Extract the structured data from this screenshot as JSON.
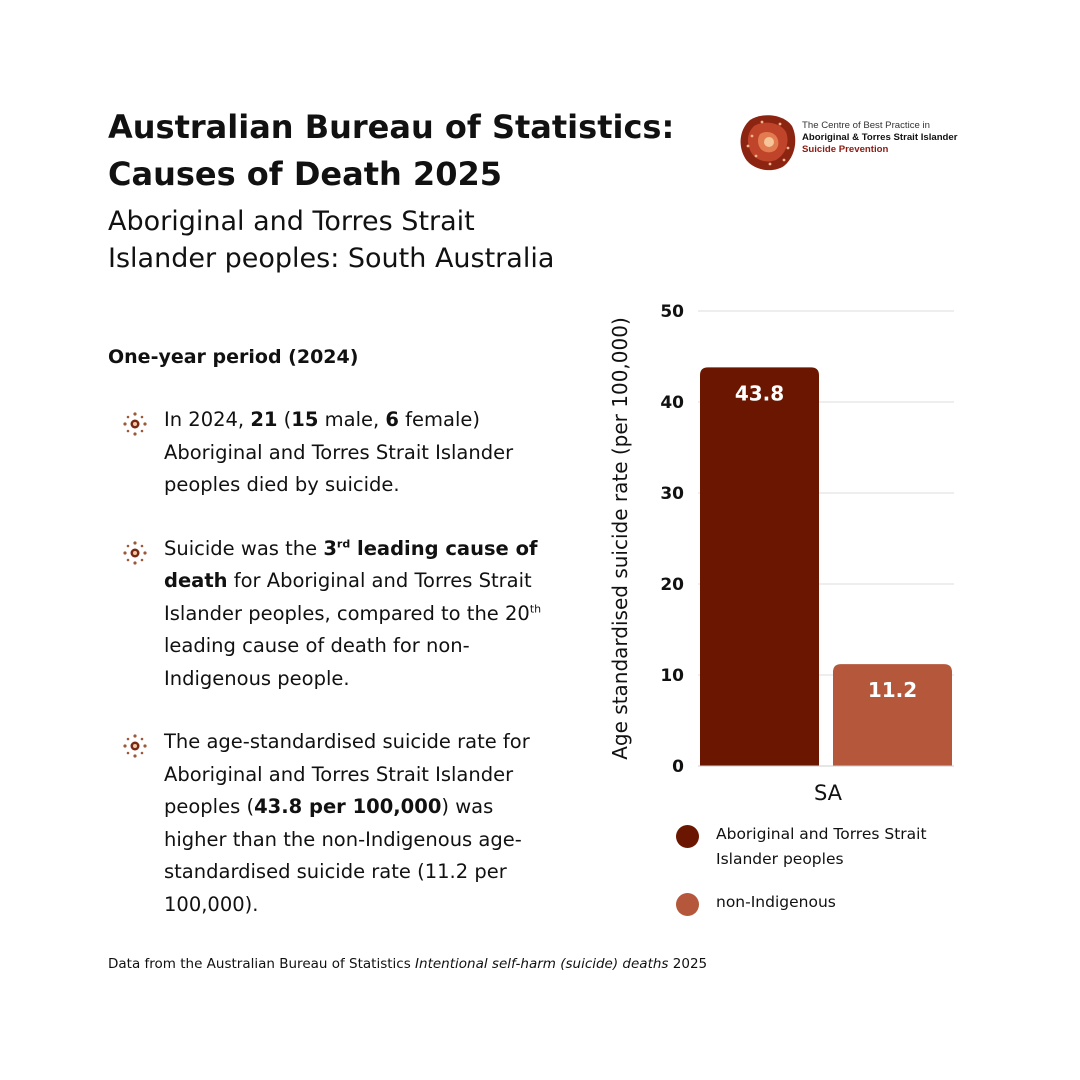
{
  "header": {
    "title_line1": "Australian Bureau of Statistics:",
    "title_line2": "Causes of Death 2025",
    "subtitle_line1": "Aboriginal and Torres Strait",
    "subtitle_line2": "Islander peoples: South Australia"
  },
  "logo": {
    "line1": "The Centre of Best Practice in",
    "line2": "Aboriginal & Torres Strait Islander",
    "line3": "Suicide Prevention",
    "icon": "dot-painting-stone-icon"
  },
  "section": {
    "period_heading": "One-year period (2024)"
  },
  "bullets": {
    "b1": {
      "t1": "In 2024, ",
      "n1": "21",
      "t2": " (",
      "n2": "15",
      "t3": " male, ",
      "n3": "6",
      "t4": " female) Aboriginal and Torres Strait Islander peoples died by suicide."
    },
    "b2": {
      "t1": "Suicide was the ",
      "rank": "3",
      "rank_sup": "rd",
      "bold1": " leading cause of death",
      "t2": " for Aboriginal and Torres Strait Islander peoples, compared to the ",
      "rank2": "20",
      "rank2_sup": "th",
      "t3": " leading cause of death for non-Indigenous people."
    },
    "b3": {
      "t1": "The age-standardised suicide rate for Aboriginal and Torres Strait Islander peoples (",
      "bold1": "43.8 per 100,000",
      "t2": ") was higher than the non-Indigenous age-standardised suicide rate (11.2 per 100,000)."
    },
    "icon": "dot-circle-icon"
  },
  "footer": {
    "source_prefix": "Data from the Australian Bureau of Statistics ",
    "source_italic": "Intentional self-harm (suicide) deaths",
    "source_suffix": " 2025"
  },
  "colors": {
    "indigenous": "#6b1601",
    "non_indigenous": "#b5573b",
    "grid": "#dddddd"
  },
  "chart_data": {
    "type": "bar",
    "categories": [
      "SA"
    ],
    "series": [
      {
        "name": "Aboriginal and Torres Strait Islander peoples",
        "values": [
          43.8
        ]
      },
      {
        "name": "non-Indigenous",
        "values": [
          11.2
        ]
      }
    ],
    "data_labels": [
      "43.8",
      "11.2"
    ],
    "yticks": [
      "0",
      "10",
      "20",
      "30",
      "40",
      "50"
    ],
    "ylim": [
      0,
      50
    ],
    "ylabel": "Age standardised suicide rate (per 100,000)",
    "xlabel": "",
    "legend": {
      "line1": "Aboriginal and Torres Strait",
      "line2": "Islander peoples",
      "item2": "non-Indigenous",
      "position": "bottom"
    }
  }
}
